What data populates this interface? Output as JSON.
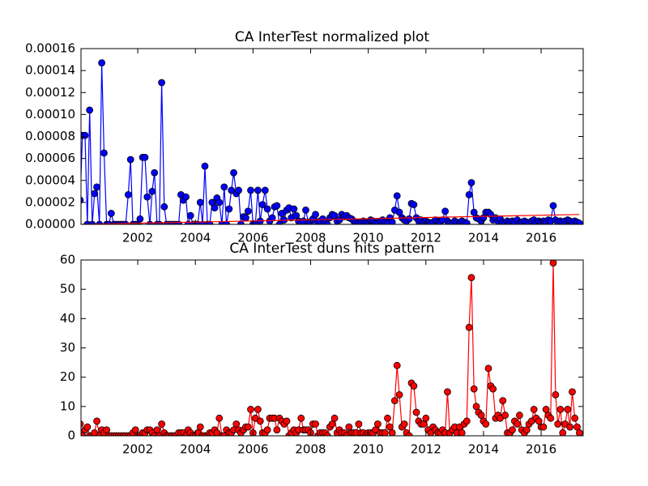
{
  "chart_data": [
    {
      "type": "line",
      "title": "CA InterTest normalized plot",
      "x": [
        2000,
        2000.08,
        2000.17,
        2000.25,
        2000.33,
        2000.42,
        2000.5,
        2000.58,
        2000.67,
        2000.75,
        2000.83,
        2000.92,
        2001,
        2001.08,
        2001.17,
        2001.25,
        2001.33,
        2001.42,
        2001.5,
        2001.58,
        2001.67,
        2001.75,
        2001.83,
        2001.92,
        2002,
        2002.08,
        2002.17,
        2002.25,
        2002.33,
        2002.42,
        2002.5,
        2002.58,
        2002.67,
        2002.75,
        2002.83,
        2002.92,
        2003,
        2003.08,
        2003.17,
        2003.25,
        2003.33,
        2003.42,
        2003.5,
        2003.58,
        2003.67,
        2003.75,
        2003.83,
        2003.92,
        2004,
        2004.08,
        2004.17,
        2004.25,
        2004.33,
        2004.42,
        2004.5,
        2004.58,
        2004.67,
        2004.75,
        2004.83,
        2004.92,
        2005,
        2005.08,
        2005.17,
        2005.25,
        2005.33,
        2005.42,
        2005.5,
        2005.58,
        2005.67,
        2005.75,
        2005.83,
        2005.92,
        2006,
        2006.08,
        2006.17,
        2006.25,
        2006.33,
        2006.42,
        2006.5,
        2006.58,
        2006.67,
        2006.75,
        2006.83,
        2006.92,
        2007,
        2007.08,
        2007.17,
        2007.25,
        2007.33,
        2007.42,
        2007.5,
        2007.58,
        2007.67,
        2007.75,
        2007.83,
        2007.92,
        2008,
        2008.08,
        2008.17,
        2008.25,
        2008.33,
        2008.42,
        2008.5,
        2008.58,
        2008.67,
        2008.75,
        2008.83,
        2008.92,
        2009,
        2009.08,
        2009.17,
        2009.25,
        2009.33,
        2009.42,
        2009.5,
        2009.58,
        2009.67,
        2009.75,
        2009.83,
        2009.92,
        2010,
        2010.08,
        2010.17,
        2010.25,
        2010.33,
        2010.42,
        2010.5,
        2010.58,
        2010.67,
        2010.75,
        2010.83,
        2010.92,
        2011,
        2011.08,
        2011.17,
        2011.25,
        2011.33,
        2011.42,
        2011.5,
        2011.58,
        2011.67,
        2011.75,
        2011.83,
        2011.92,
        2012,
        2012.08,
        2012.17,
        2012.25,
        2012.33,
        2012.42,
        2012.5,
        2012.58,
        2012.67,
        2012.75,
        2012.83,
        2012.92,
        2013,
        2013.08,
        2013.17,
        2013.25,
        2013.33,
        2013.42,
        2013.5,
        2013.58,
        2013.67,
        2013.75,
        2013.83,
        2013.92,
        2014,
        2014.08,
        2014.17,
        2014.25,
        2014.33,
        2014.42,
        2014.5,
        2014.58,
        2014.67,
        2014.75,
        2014.83,
        2014.92,
        2015,
        2015.08,
        2015.17,
        2015.25,
        2015.33,
        2015.42,
        2015.5,
        2015.58,
        2015.67,
        2015.75,
        2015.83,
        2015.92,
        2016,
        2016.08,
        2016.17,
        2016.25,
        2016.33,
        2016.42,
        2016.5,
        2016.58,
        2016.67,
        2016.75,
        2016.83,
        2016.92,
        2017,
        2017.08,
        2017.17,
        2017.25,
        2017.33
      ],
      "series": [
        {
          "color": "#0000ff",
          "values": [
            2.2e-05,
            8.1e-05,
            8.1e-05,
            0,
            0.000104,
            0,
            2.8e-05,
            3.4e-05,
            0,
            0.000147,
            6.5e-05,
            0,
            0,
            1e-05,
            0,
            0,
            0,
            0,
            0,
            0,
            2.7e-05,
            5.9e-05,
            0,
            0,
            0,
            5e-06,
            6.1e-05,
            6.1e-05,
            2.5e-05,
            0,
            3e-05,
            4.7e-05,
            0,
            0,
            0.000129,
            1.6e-05,
            0,
            0,
            0,
            0,
            0,
            0,
            2.7e-05,
            2.2e-05,
            2.5e-05,
            0,
            8e-06,
            0,
            0,
            0,
            2e-05,
            0,
            5.3e-05,
            0,
            0,
            2e-05,
            1.5e-05,
            2.4e-05,
            2e-05,
            0,
            3.4e-05,
            0,
            1.4e-05,
            3.1e-05,
            4.7e-05,
            2.8e-05,
            3.1e-05,
            0,
            7e-06,
            6e-06,
            1.2e-05,
            3.1e-05,
            0,
            0,
            3.1e-05,
            3e-06,
            1.8e-05,
            3.1e-05,
            1.4e-05,
            3e-06,
            6e-06,
            1.6e-05,
            1.7e-05,
            0,
            1e-05,
            4e-06,
            1.3e-05,
            1.5e-05,
            6e-06,
            1.4e-05,
            8e-06,
            3e-06,
            2e-06,
            3e-06,
            1.3e-05,
            2e-06,
            2e-06,
            5e-06,
            9e-06,
            2e-06,
            3e-06,
            5e-06,
            2e-06,
            0,
            6e-06,
            9e-06,
            8e-06,
            3e-06,
            4e-06,
            9e-06,
            7e-06,
            8e-06,
            6e-06,
            5e-06,
            3e-06,
            2e-06,
            1e-06,
            2e-06,
            3e-06,
            2e-06,
            2e-06,
            4e-06,
            3e-06,
            1e-06,
            2e-06,
            3e-06,
            4e-06,
            2e-06,
            1e-06,
            6e-06,
            2e-06,
            1.3e-05,
            2.6e-05,
            1.1e-05,
            6e-06,
            4e-06,
            3e-06,
            5e-06,
            1.9e-05,
            1.8e-05,
            6e-06,
            3e-06,
            4e-06,
            2e-06,
            3e-06,
            2e-06,
            1e-06,
            2e-06,
            4e-06,
            3e-06,
            2e-06,
            4e-06,
            1.2e-05,
            3e-06,
            1e-06,
            1e-06,
            3e-06,
            2e-06,
            1e-06,
            3e-06,
            2e-06,
            1e-06,
            2.7e-05,
            3.8e-05,
            1.1e-05,
            6e-06,
            5e-06,
            3e-06,
            6e-06,
            1.1e-05,
            1.1e-05,
            9e-06,
            4e-06,
            6e-06,
            3e-06,
            5e-06,
            2e-06,
            1e-06,
            3e-06,
            2e-06,
            3e-06,
            2e-06,
            4e-06,
            1e-06,
            2e-06,
            3e-06,
            2e-06,
            1e-06,
            3e-06,
            4e-06,
            2e-06,
            3e-06,
            2e-06,
            3e-06,
            2e-06,
            4e-06,
            3e-06,
            1.7e-05,
            4e-06,
            2e-06,
            3e-06,
            2e-06,
            3e-06,
            4e-06,
            3e-06,
            2e-06,
            3e-06,
            2e-06,
            1e-06
          ]
        }
      ],
      "trend": {
        "color": "#ff0000",
        "x": [
          2000,
          2017.33
        ],
        "values": [
          0,
          9e-06
        ]
      },
      "xlim": [
        2000.03,
        2017.46
      ],
      "xticks": [
        2002,
        2004,
        2006,
        2008,
        2010,
        2012,
        2014,
        2016
      ],
      "ylim": [
        0,
        0.00016
      ],
      "yticks": [
        {
          "value": 0,
          "label": "0.00000"
        },
        {
          "value": 2e-05,
          "label": "0.00002"
        },
        {
          "value": 4e-05,
          "label": "0.00004"
        },
        {
          "value": 6e-05,
          "label": "0.00006"
        },
        {
          "value": 8e-05,
          "label": "0.00008"
        },
        {
          "value": 0.0001,
          "label": "0.00010"
        },
        {
          "value": 0.00012,
          "label": "0.00012"
        },
        {
          "value": 0.00014,
          "label": "0.00014"
        },
        {
          "value": 0.00016,
          "label": "0.00016"
        }
      ]
    },
    {
      "type": "line",
      "title": "CA InterTest duns hits pattern",
      "x": [
        2000,
        2000.08,
        2000.17,
        2000.25,
        2000.33,
        2000.42,
        2000.5,
        2000.58,
        2000.67,
        2000.75,
        2000.83,
        2000.92,
        2001,
        2001.08,
        2001.17,
        2001.25,
        2001.33,
        2001.42,
        2001.5,
        2001.58,
        2001.67,
        2001.75,
        2001.83,
        2001.92,
        2002,
        2002.08,
        2002.17,
        2002.25,
        2002.33,
        2002.42,
        2002.5,
        2002.58,
        2002.67,
        2002.75,
        2002.83,
        2002.92,
        2003,
        2003.08,
        2003.17,
        2003.25,
        2003.33,
        2003.42,
        2003.5,
        2003.58,
        2003.67,
        2003.75,
        2003.83,
        2003.92,
        2004,
        2004.08,
        2004.17,
        2004.25,
        2004.33,
        2004.42,
        2004.5,
        2004.58,
        2004.67,
        2004.75,
        2004.83,
        2004.92,
        2005,
        2005.08,
        2005.17,
        2005.25,
        2005.33,
        2005.42,
        2005.5,
        2005.58,
        2005.67,
        2005.75,
        2005.83,
        2005.92,
        2006,
        2006.08,
        2006.17,
        2006.25,
        2006.33,
        2006.42,
        2006.5,
        2006.58,
        2006.67,
        2006.75,
        2006.83,
        2006.92,
        2007,
        2007.08,
        2007.17,
        2007.25,
        2007.33,
        2007.42,
        2007.5,
        2007.58,
        2007.67,
        2007.75,
        2007.83,
        2007.92,
        2008,
        2008.08,
        2008.17,
        2008.25,
        2008.33,
        2008.42,
        2008.5,
        2008.58,
        2008.67,
        2008.75,
        2008.83,
        2008.92,
        2009,
        2009.08,
        2009.17,
        2009.25,
        2009.33,
        2009.42,
        2009.5,
        2009.58,
        2009.67,
        2009.75,
        2009.83,
        2009.92,
        2010,
        2010.08,
        2010.17,
        2010.25,
        2010.33,
        2010.42,
        2010.5,
        2010.58,
        2010.67,
        2010.75,
        2010.83,
        2010.92,
        2011,
        2011.08,
        2011.17,
        2011.25,
        2011.33,
        2011.42,
        2011.5,
        2011.58,
        2011.67,
        2011.75,
        2011.83,
        2011.92,
        2012,
        2012.08,
        2012.17,
        2012.25,
        2012.33,
        2012.42,
        2012.5,
        2012.58,
        2012.67,
        2012.75,
        2012.83,
        2012.92,
        2013,
        2013.08,
        2013.17,
        2013.25,
        2013.33,
        2013.42,
        2013.5,
        2013.58,
        2013.67,
        2013.75,
        2013.83,
        2013.92,
        2014,
        2014.08,
        2014.17,
        2014.25,
        2014.33,
        2014.42,
        2014.5,
        2014.58,
        2014.67,
        2014.75,
        2014.83,
        2014.92,
        2015,
        2015.08,
        2015.17,
        2015.25,
        2015.33,
        2015.42,
        2015.5,
        2015.58,
        2015.67,
        2015.75,
        2015.83,
        2015.92,
        2016,
        2016.08,
        2016.17,
        2016.25,
        2016.33,
        2016.42,
        2016.5,
        2016.58,
        2016.67,
        2016.75,
        2016.83,
        2016.92,
        2017,
        2017.08,
        2017.17,
        2017.25,
        2017.33
      ],
      "series": [
        {
          "color": "#ff0000",
          "values": [
            4,
            0,
            2,
            3,
            0,
            0,
            1,
            5,
            0,
            2,
            1,
            2,
            0,
            0,
            0,
            0,
            0,
            0,
            0,
            0,
            0,
            0,
            1,
            2,
            0,
            0,
            1,
            1,
            2,
            2,
            1,
            0,
            2,
            0,
            4,
            1,
            0,
            0,
            0,
            0,
            0,
            1,
            1,
            1,
            0,
            2,
            1,
            0,
            0,
            1,
            3,
            0,
            0,
            0,
            1,
            1,
            2,
            1,
            6,
            0,
            0,
            2,
            1,
            1,
            2,
            4,
            2,
            1,
            2,
            3,
            3,
            9,
            1,
            6,
            9,
            5,
            1,
            1,
            2,
            6,
            6,
            6,
            2,
            6,
            5,
            4,
            5,
            0,
            1,
            2,
            1,
            2,
            6,
            2,
            2,
            2,
            1,
            4,
            4,
            0,
            1,
            1,
            1,
            0,
            3,
            4,
            6,
            1,
            2,
            1,
            1,
            0,
            3,
            1,
            1,
            1,
            4,
            1,
            1,
            0,
            1,
            1,
            1,
            2,
            4,
            1,
            1,
            1,
            6,
            3,
            1,
            12,
            24,
            14,
            3,
            4,
            1,
            0,
            18,
            17,
            8,
            5,
            4,
            4,
            6,
            2,
            1,
            3,
            2,
            1,
            1,
            2,
            1,
            15,
            1,
            2,
            3,
            1,
            3,
            1,
            4,
            5,
            37,
            54,
            16,
            10,
            8,
            7,
            5,
            4,
            23,
            17,
            16,
            6,
            7,
            6,
            12,
            7,
            1,
            1,
            2,
            5,
            4,
            7,
            2,
            1,
            2,
            4,
            5,
            9,
            6,
            5,
            3,
            3,
            9,
            7,
            6,
            59,
            14,
            4,
            9,
            1,
            4,
            9,
            3,
            15,
            6,
            3,
            1
          ]
        }
      ],
      "xlim": [
        2000.03,
        2017.46
      ],
      "xticks": [
        2002,
        2004,
        2006,
        2008,
        2010,
        2012,
        2014,
        2016
      ],
      "ylim": [
        0,
        60
      ],
      "yticks": [
        0,
        10,
        20,
        30,
        40,
        50,
        60
      ]
    }
  ]
}
